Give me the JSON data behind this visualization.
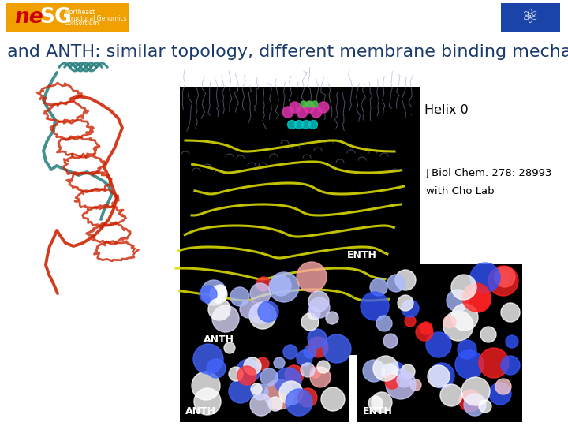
{
  "title": "ENTH and ANTH: similar topology, different membrane binding mechanism",
  "title_fontsize": 16,
  "title_color": "#1a3a6b",
  "background_color": "#ffffff",
  "helix0_label": "Helix 0",
  "label_jbc": "J Biol Chem. 278: 28993",
  "label_cho": "with Cho Lab",
  "label_enth": "ENTH",
  "label_anth": "ANTH"
}
